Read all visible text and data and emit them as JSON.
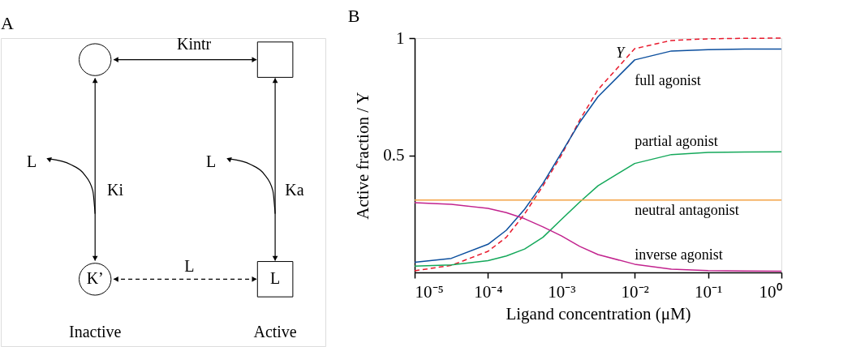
{
  "chart_data": [
    {
      "type": "other",
      "title": "A",
      "annotations": [
        "Kintr",
        "L",
        "Ki",
        "L",
        "Ka",
        "L",
        "K’",
        "L",
        "Inactive",
        "Active"
      ]
    },
    {
      "type": "line",
      "title": "B",
      "xlabel": "Ligand concentration (μM)",
      "ylabel": "Active fraction / Y",
      "log": "x",
      "x": [
        1e-05,
        3.162e-05,
        0.0001,
        0.0001778,
        0.0003162,
        0.0005623,
        0.001,
        0.001778,
        0.003162,
        0.01,
        0.03162,
        0.1,
        0.3162,
        1
      ],
      "xlim": [
        1e-05,
        1
      ],
      "xticks": [
        {
          "value": 1e-05,
          "label": "10⁻⁵"
        },
        {
          "value": 0.0001,
          "label": "10⁻⁴"
        },
        {
          "value": 0.001,
          "label": "10⁻³"
        },
        {
          "value": 0.01,
          "label": "10⁻²"
        },
        {
          "value": 0.1,
          "label": "10⁻¹"
        },
        {
          "value": 1,
          "label": "10⁰"
        }
      ],
      "ylim": [
        0,
        1
      ],
      "yticks": [
        0.5,
        1
      ],
      "grid": false,
      "legend": false,
      "series": [
        {
          "name": "Y",
          "color": "#e8192c",
          "line_style": "dashed",
          "values": [
            0.007,
            0.03,
            0.09,
            0.15,
            0.25,
            0.37,
            0.5,
            0.65,
            0.78,
            0.955,
            0.99,
            0.997,
            0.999,
            1.0
          ]
        },
        {
          "name": "full agonist",
          "color": "#0c4f9e",
          "line_style": "solid",
          "values": [
            0.043,
            0.06,
            0.12,
            0.18,
            0.27,
            0.38,
            0.51,
            0.64,
            0.75,
            0.907,
            0.945,
            0.951,
            0.953,
            0.953
          ]
        },
        {
          "name": "partial agonist",
          "color": "#14a85a",
          "line_style": "solid",
          "values": [
            0.027,
            0.032,
            0.05,
            0.07,
            0.1,
            0.15,
            0.226,
            0.3,
            0.37,
            0.465,
            0.503,
            0.512,
            0.514,
            0.515
          ]
        },
        {
          "name": "neutral antagonist",
          "color": "#f4a346",
          "line_style": "solid",
          "values": [
            0.309,
            0.309,
            0.309,
            0.309,
            0.309,
            0.309,
            0.309,
            0.309,
            0.309,
            0.309,
            0.309,
            0.309,
            0.309,
            0.309
          ]
        },
        {
          "name": "inverse agonist",
          "color": "#c2238e",
          "line_style": "solid",
          "values": [
            0.298,
            0.291,
            0.273,
            0.255,
            0.229,
            0.194,
            0.156,
            0.111,
            0.076,
            0.035,
            0.014,
            0.008,
            0.006,
            0.005
          ]
        }
      ]
    }
  ]
}
